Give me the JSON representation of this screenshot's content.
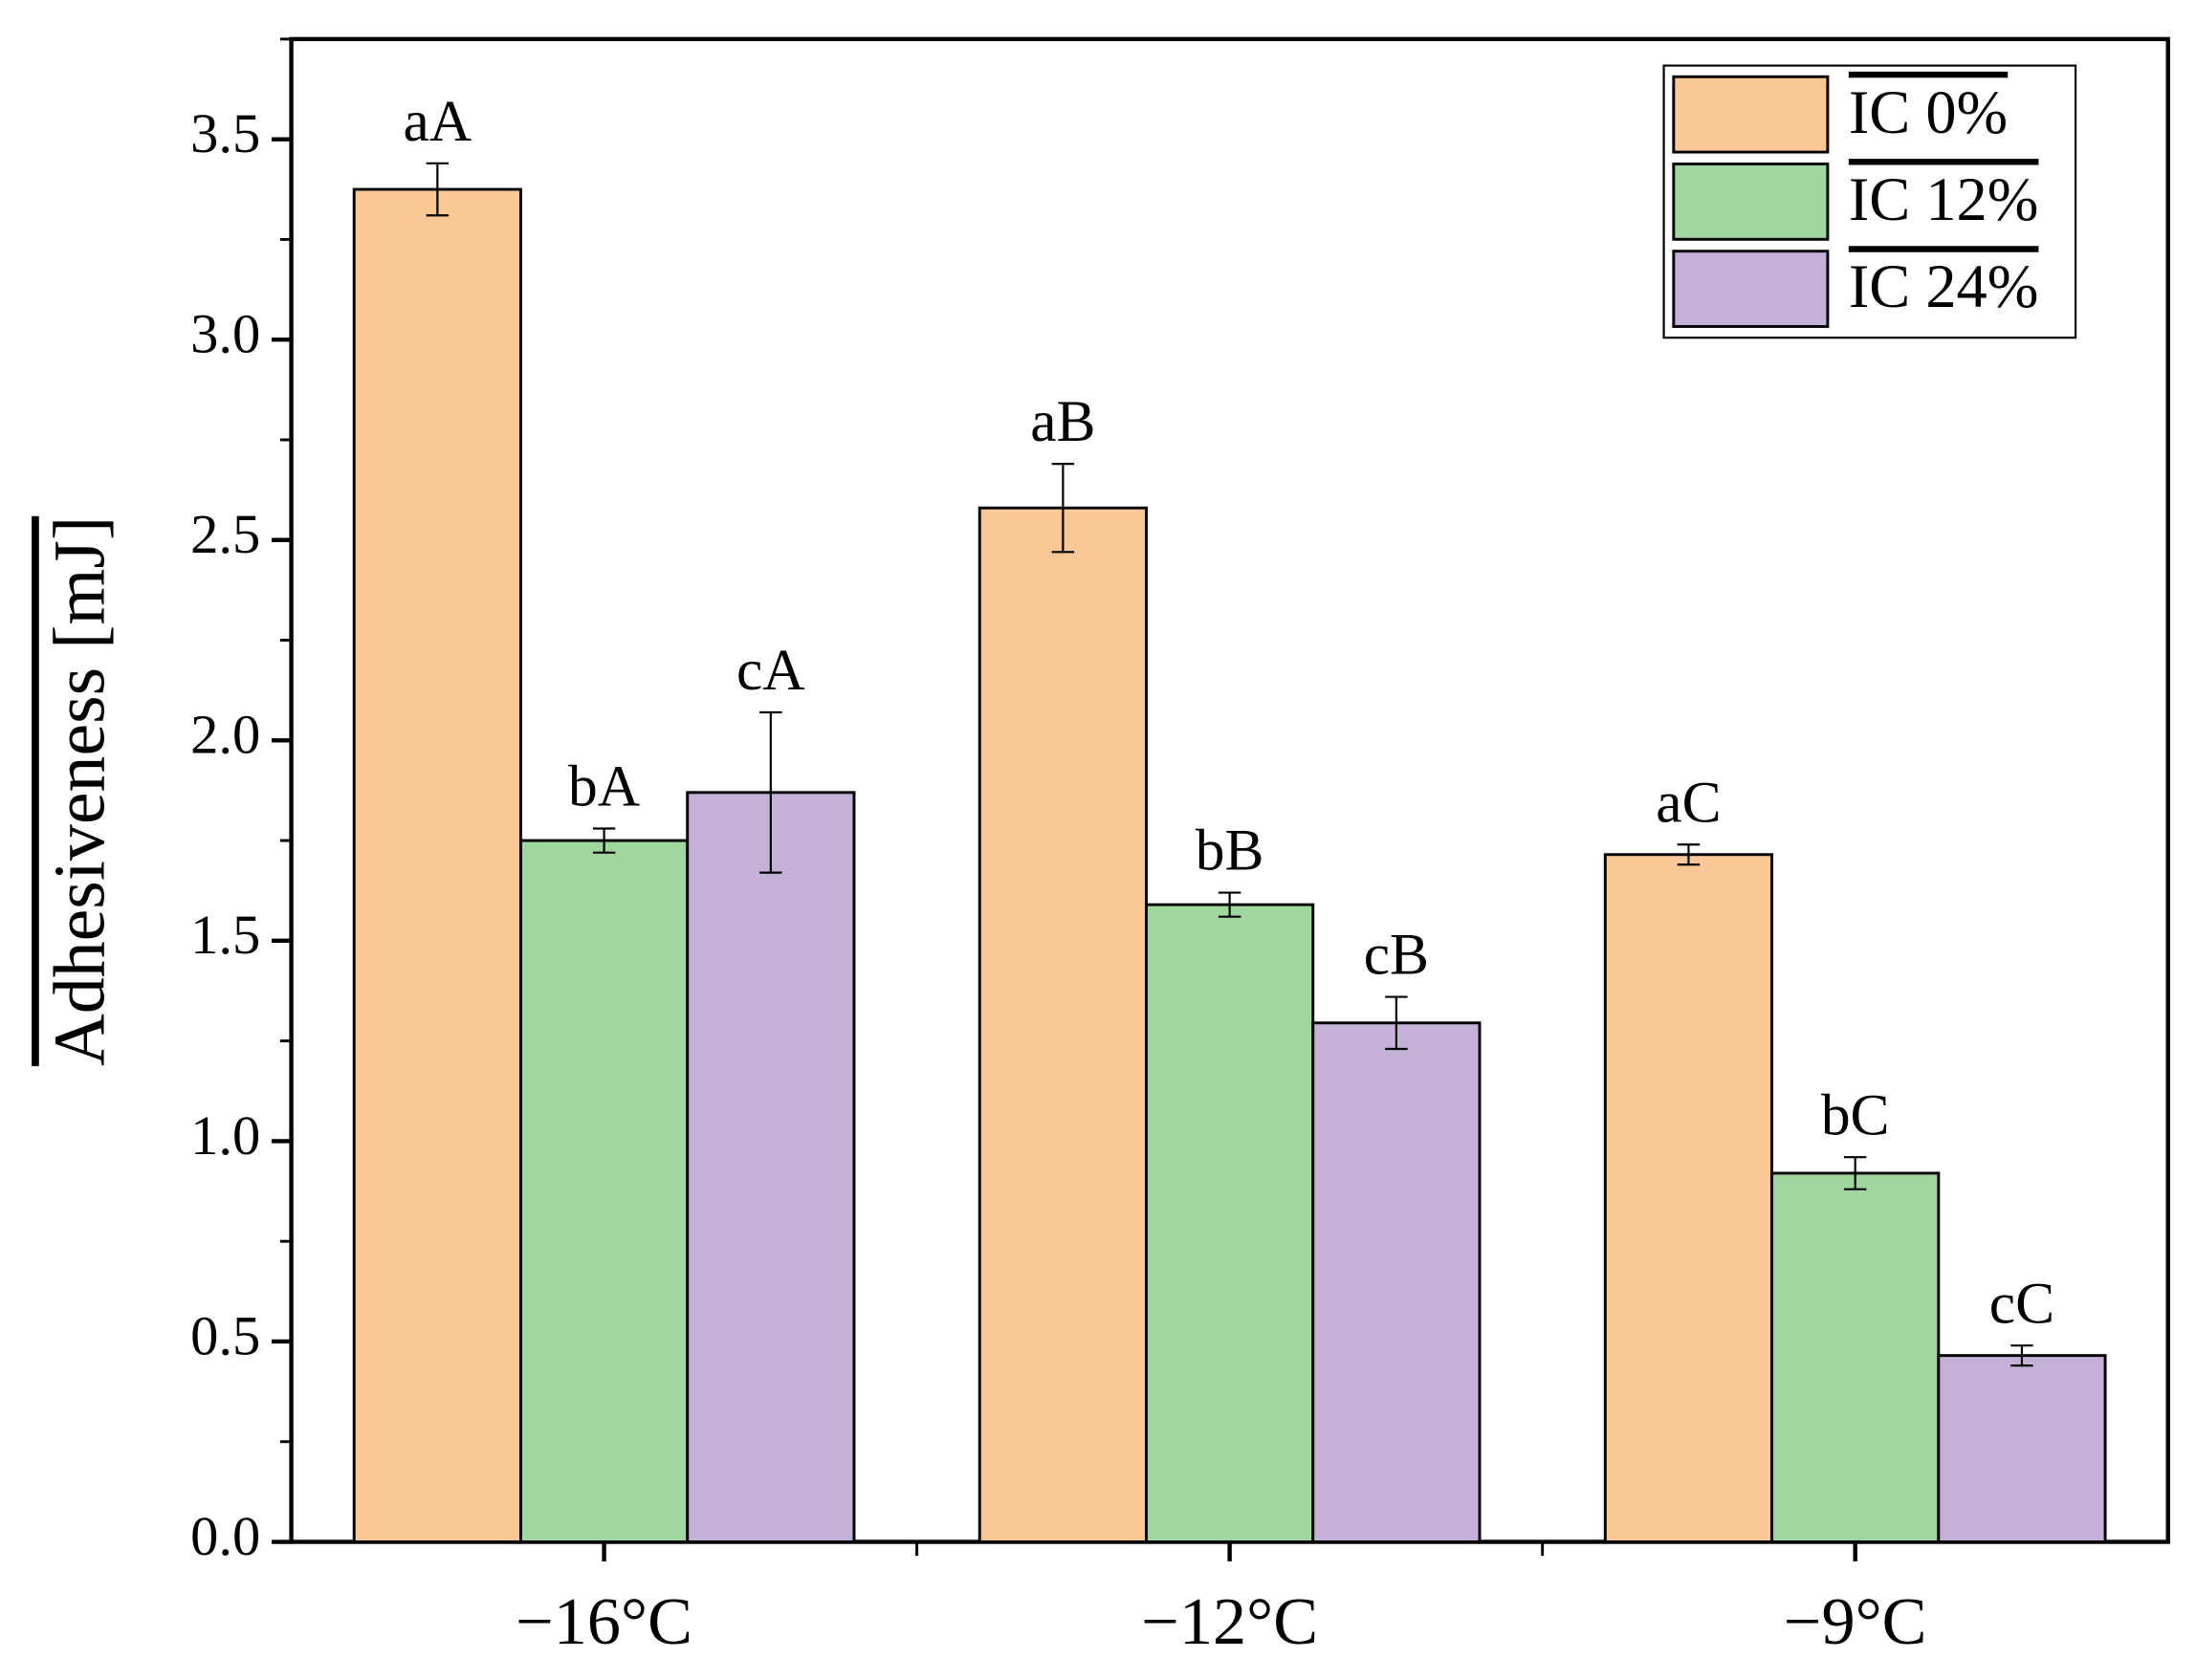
{
  "chart_data": {
    "type": "bar",
    "y_label": "Adhesiveness [mJ]",
    "categories": [
      "−16°C",
      "−12°C",
      "−9°C"
    ],
    "series": [
      {
        "name": "IC 0%",
        "color": "#f9c896",
        "values": [
          3.375,
          2.58,
          1.715
        ],
        "errors": [
          0.065,
          0.11,
          0.025
        ],
        "letters": [
          "aA",
          "aB",
          "aC"
        ]
      },
      {
        "name": "IC 12%",
        "color": "#a0d79e",
        "values": [
          1.75,
          1.59,
          0.92
        ],
        "errors": [
          0.03,
          0.03,
          0.04
        ],
        "letters": [
          "bA",
          "bB",
          "bC"
        ]
      },
      {
        "name": "IC 24%",
        "color": "#c3b1d7",
        "values": [
          1.87,
          1.295,
          0.465
        ],
        "errors": [
          0.2,
          0.065,
          0.025
        ],
        "letters": [
          "cA",
          "cB",
          "cC"
        ]
      }
    ],
    "ylim": [
      0,
      3.75
    ],
    "yticks": [
      {
        "value": 0,
        "label": "0.0"
      },
      0.5,
      {
        "value": 1,
        "label": "1.0"
      },
      1.5,
      {
        "value": 2,
        "label": "2.0"
      },
      2.5,
      {
        "value": 3,
        "label": "3.0"
      },
      3.5
    ],
    "legend": "top-right"
  }
}
